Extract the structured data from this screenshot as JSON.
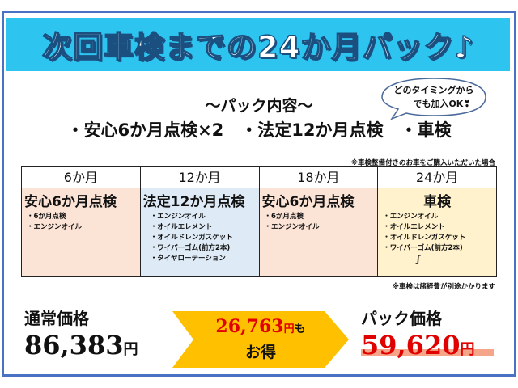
{
  "title": "次回車検までの24か月パック♪",
  "contents_heading": "～パック内容～",
  "contents_items": "・安心6か月点検×2　・法定12か月点検　・車検",
  "bubble": {
    "line1": "どのタイミングから",
    "line2": "でも加入OK❣"
  },
  "note_top": "※車検整備付きのお車をご購入いただいた場合",
  "note_bottom": "※車検は諸経費が別途かかります",
  "columns": [
    {
      "period": "6か月",
      "title": "安心6か月点検",
      "items": [
        "・6か月点検",
        "・エンジンオイル"
      ],
      "color": "#fbe3d6"
    },
    {
      "period": "12か月",
      "title": "法定12か月点検",
      "items": [
        "・エンジンオイル",
        "・オイルエレメント",
        "・オイルドレンガスケット",
        "・ワイパーゴム(前方2本)",
        "・タイヤローテーション"
      ],
      "color": "#deebf7"
    },
    {
      "period": "18か月",
      "title": "安心6か月点検",
      "items": [
        "・6か月点検",
        "・エンジンオイル"
      ],
      "color": "#fbe3d6"
    },
    {
      "period": "24か月",
      "title": "車検",
      "items": [
        "・エンジンオイル",
        "・オイルエレメント",
        "・オイルドレンガスケット",
        "・ワイパーゴム(前方2本)",
        "∫"
      ],
      "color": "#fff2cc"
    }
  ],
  "regular": {
    "label": "通常価格",
    "amount": "86,383",
    "unit": "円"
  },
  "savings": {
    "amount": "26,763",
    "unit": "円",
    "suffix": "も",
    "line2": "お得"
  },
  "pack": {
    "label": "パック価格",
    "amount": "59,620",
    "unit": "円"
  },
  "colors": {
    "frame": "#4a72c4",
    "banner": "#2ec4f0",
    "arrow": "#ffc000",
    "red": "#e00000"
  }
}
